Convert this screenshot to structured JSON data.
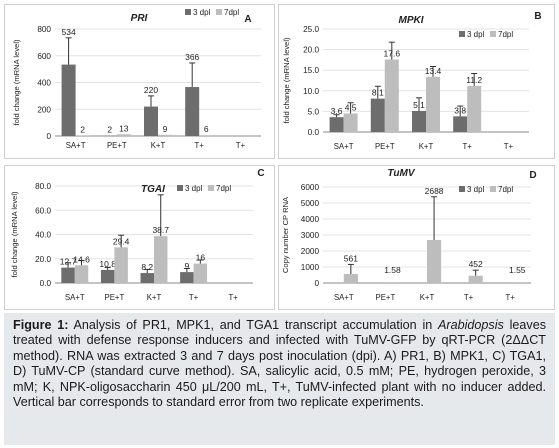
{
  "chart_data": [
    {
      "panel": "A",
      "type": "bar",
      "title": "PRI",
      "ylabel": "fold change (mRNA level)",
      "ylim": [
        0,
        800
      ],
      "yticks": [
        0,
        200,
        400,
        600,
        800
      ],
      "ytick_labels": [
        "0",
        "200",
        "400",
        "600",
        "800"
      ],
      "categories": [
        "SA+T",
        "PE+T",
        "K+T",
        "T+",
        "T+"
      ],
      "series": [
        {
          "name": "3 dpl",
          "color": "#6d6d6d",
          "values": [
            534,
            2,
            220,
            366,
            null
          ],
          "errors": [
            200,
            0,
            80,
            180,
            null
          ],
          "labels": [
            "534",
            "2",
            "220",
            "366",
            ""
          ]
        },
        {
          "name": "7dpl",
          "color": "#bdbdbd",
          "values": [
            2,
            13,
            9,
            6,
            null
          ],
          "errors": [
            0,
            0,
            0,
            0,
            null
          ],
          "labels": [
            "2",
            "13",
            "9",
            "6",
            ""
          ]
        }
      ]
    },
    {
      "panel": "B",
      "type": "bar",
      "title": "MPKI",
      "ylabel": "fold change (mRNA level)",
      "ylim": [
        0,
        25
      ],
      "yticks": [
        0,
        5,
        10,
        15,
        20,
        25
      ],
      "ytick_labels": [
        "0.0",
        "5.0",
        "10.0",
        "15.0",
        "20.0",
        "25.0"
      ],
      "categories": [
        "SA+T",
        "PE+T",
        "K+T",
        "T+",
        "T+"
      ],
      "series": [
        {
          "name": "3 dpl",
          "color": "#6d6d6d",
          "values": [
            3.6,
            8.1,
            5.1,
            3.8,
            null
          ],
          "errors": [
            0.6,
            3.0,
            3.2,
            2.5,
            null
          ],
          "labels": [
            "3.6",
            "8.1",
            "5.1",
            "3.8",
            ""
          ]
        },
        {
          "name": "7dpl",
          "color": "#bdbdbd",
          "values": [
            4.5,
            17.6,
            13.4,
            11.2,
            null
          ],
          "errors": [
            2.6,
            4.2,
            2.5,
            3.0,
            null
          ],
          "labels": [
            "4.5",
            "17.6",
            "13.4",
            "11.2",
            ""
          ]
        }
      ]
    },
    {
      "panel": "C",
      "type": "bar",
      "title": "TGAI",
      "ylabel": "fold change (mRNA level)",
      "ylim": [
        0,
        80
      ],
      "yticks": [
        0,
        20,
        40,
        60,
        80
      ],
      "ytick_labels": [
        "0.0",
        "20.0",
        "40.0",
        "60.0",
        "80.0"
      ],
      "categories": [
        "SA+T",
        "PE+T",
        "K+T",
        "T+",
        "T+"
      ],
      "series": [
        {
          "name": "3 dpl",
          "color": "#6d6d6d",
          "values": [
            12.7,
            10.8,
            8.2,
            9,
            null
          ],
          "errors": [
            4,
            2,
            3,
            3,
            null
          ],
          "labels": [
            "12.7",
            "10.8",
            "8.2",
            "9",
            ""
          ]
        },
        {
          "name": "7dpl",
          "color": "#bdbdbd",
          "values": [
            14.6,
            29.4,
            38.7,
            16,
            null
          ],
          "errors": [
            4,
            10,
            34,
            3,
            null
          ],
          "labels": [
            "14.6",
            "29.4",
            "38.7",
            "16",
            ""
          ]
        }
      ]
    },
    {
      "panel": "D",
      "type": "bar",
      "title": "TuMV",
      "ylabel": "Copy number CP RNA",
      "ylim": [
        0,
        6000
      ],
      "yticks": [
        0,
        1000,
        2000,
        3000,
        4000,
        5000,
        6000
      ],
      "ytick_labels": [
        "0",
        "1000",
        "2000",
        "3000",
        "4000",
        "5000",
        "6000"
      ],
      "categories": [
        "SA+T",
        "PE+T",
        "K+T",
        "T+",
        "T+"
      ],
      "series": [
        {
          "name": "3 dpl",
          "color": "#6d6d6d",
          "values": [
            null,
            null,
            null,
            null,
            null
          ],
          "errors": [
            null,
            null,
            null,
            null,
            null
          ],
          "labels": [
            "",
            "",
            "",
            "",
            ""
          ]
        },
        {
          "name": "7dpl",
          "color": "#bdbdbd",
          "values": [
            561,
            1.58,
            2688,
            452,
            1.55
          ],
          "errors": [
            600,
            0,
            2700,
            350,
            0
          ],
          "labels": [
            "561",
            "1.58",
            "2688",
            "452",
            "1.55"
          ]
        }
      ]
    }
  ],
  "caption": {
    "lead": "Figure 1:",
    "t1": " Analysis of PR1, MPK1, and TGA1 transcript accumulation in ",
    "italic": "Arabidopsis",
    "t2": " leaves treated with defense response inducers and infected with TuMV-GFP by qRT-PCR (2ΔΔCT method). RNA was extracted 3 and 7 days post inoculation (dpi). A) PR1, B) MPK1, C) TGA1, D) TuMV-CP (standard curve method). SA, salicylic acid, 0.5 mM; PE, hydrogen peroxide, 3 mM; K, NPK-oligosaccharin 450 μL/200 mL, T+, TuMV-infected plant with no inducer added. Vertical bar corresponds to standard error from two replicate experiments."
  }
}
